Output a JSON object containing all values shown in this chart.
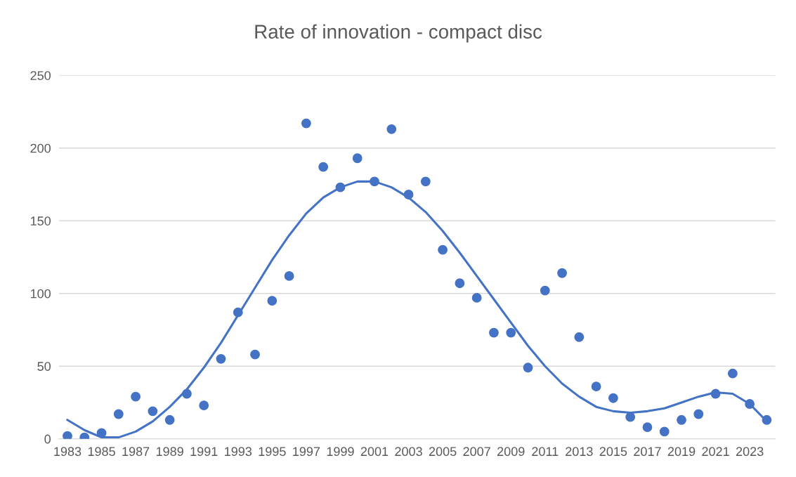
{
  "chart_data": {
    "type": "scatter",
    "title": "Rate of innovation - compact disc",
    "categories": [
      "1983",
      null,
      "1985",
      null,
      "1987",
      null,
      "1989",
      null,
      "1991",
      null,
      "1993",
      null,
      "1995",
      null,
      "1997",
      null,
      "1999",
      null,
      "2001",
      null,
      "2003",
      null,
      "2005",
      null,
      "2007",
      null,
      "2009",
      null,
      "2011",
      null,
      "2013",
      null,
      "2015",
      null,
      "2017",
      null,
      "2019",
      null,
      "2021",
      null,
      "2023",
      null
    ],
    "series": [
      {
        "color": "#4472c4",
        "marker": "circle",
        "values": [
          2,
          1,
          4,
          17,
          29,
          19,
          13,
          31,
          23,
          55,
          87,
          58,
          95,
          112,
          217,
          187,
          173,
          193,
          177,
          213,
          168,
          177,
          130,
          107,
          97,
          73,
          73,
          49,
          102,
          114,
          70,
          36,
          28,
          15,
          8,
          5,
          13,
          17,
          31,
          45,
          24,
          13
        ]
      },
      {
        "type": "line",
        "color": "#4472c4",
        "marker": "none",
        "values": [
          13,
          6,
          1,
          1,
          5,
          12,
          22,
          34,
          49,
          66,
          85,
          104,
          123,
          140,
          155,
          166,
          173,
          177,
          177,
          173,
          166,
          156,
          143,
          128,
          112,
          96,
          80,
          64,
          50,
          38,
          29,
          22,
          19,
          18,
          19,
          21,
          25,
          29,
          32,
          31,
          24,
          12
        ]
      }
    ],
    "ylim": [
      0,
      250
    ],
    "yticks": [
      0,
      50,
      100,
      150,
      200,
      250
    ],
    "grid": "y"
  }
}
